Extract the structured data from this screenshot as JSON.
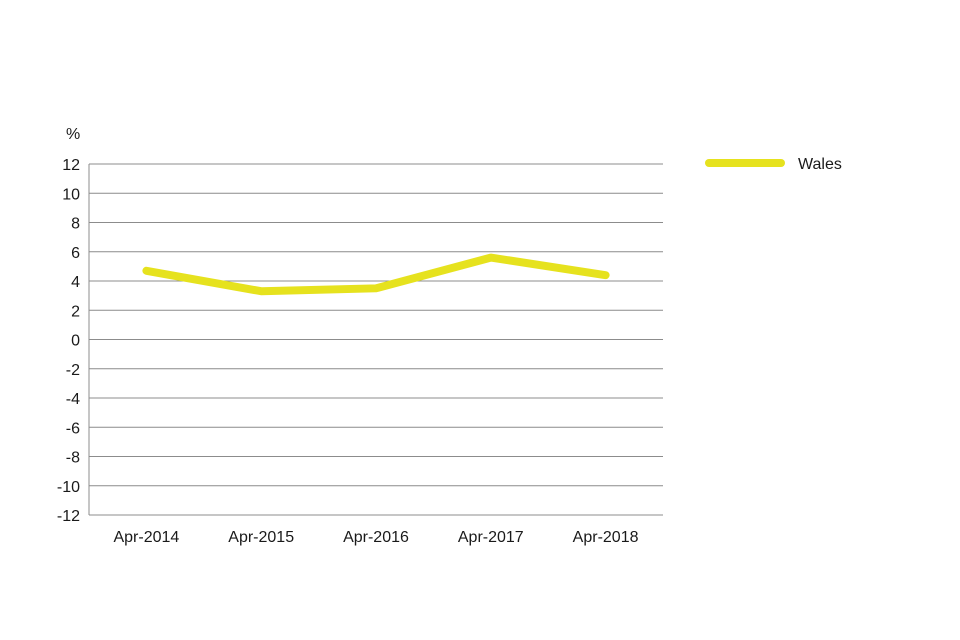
{
  "chart_data": {
    "type": "line",
    "ylabel": "%",
    "x": [
      "Apr-2014",
      "Apr-2015",
      "Apr-2016",
      "Apr-2017",
      "Apr-2018"
    ],
    "series": [
      {
        "name": "Wales",
        "values": [
          4.7,
          3.3,
          3.5,
          5.6,
          4.4
        ],
        "color": "#e6e21e"
      }
    ],
    "ylim": [
      -12,
      12
    ],
    "yticks": [
      "12",
      "10",
      "8",
      "6",
      "4",
      "2",
      "0",
      "-2",
      "-4",
      "-6",
      "-8",
      "-10",
      "-12"
    ],
    "grid": true,
    "legend_position": "top-right"
  }
}
